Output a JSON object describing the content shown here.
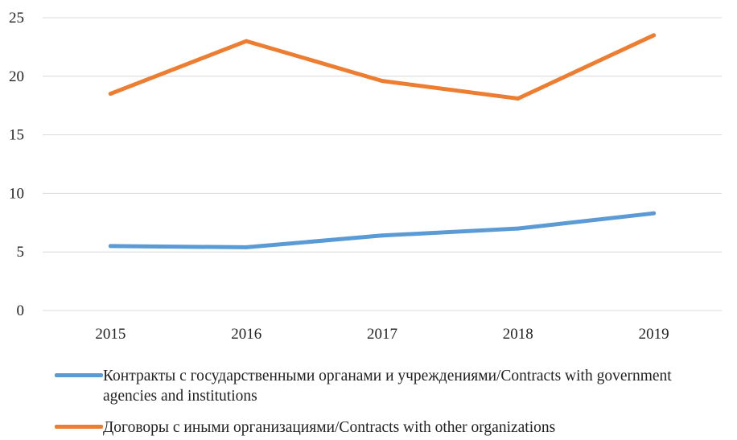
{
  "chart_data": {
    "type": "line",
    "categories": [
      "2015",
      "2016",
      "2017",
      "2018",
      "2019"
    ],
    "ylim": [
      0,
      25
    ],
    "yticks": [
      0,
      5,
      10,
      15,
      20,
      25
    ],
    "grid": true,
    "legend_position": "bottom",
    "series": [
      {
        "name": "Контракты с государственными органами и учреждениями/Contracts with government agencies and institutions",
        "color": "#5b9bd5",
        "values": [
          5.5,
          5.4,
          6.4,
          7.0,
          8.3
        ]
      },
      {
        "name": "Договоры с иными организациями/Contracts with other organizations",
        "color": "#ed7d31",
        "values": [
          18.5,
          23.0,
          19.6,
          18.1,
          23.5
        ]
      }
    ]
  }
}
